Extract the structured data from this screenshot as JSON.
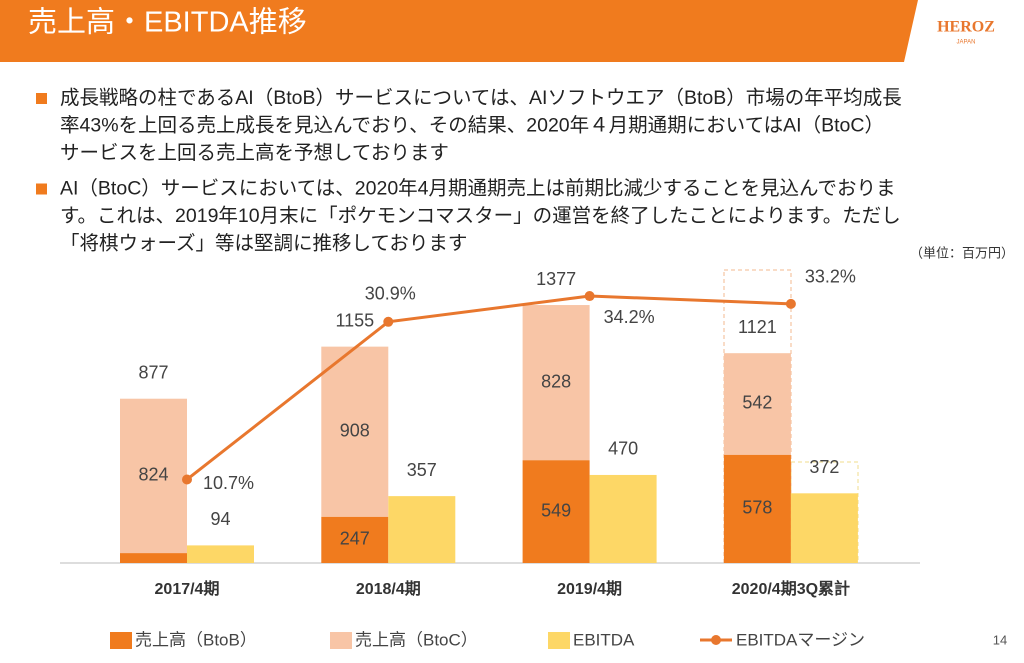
{
  "header": {
    "title": "売上高・EBITDA推移",
    "logo": "HEROZ",
    "logo_sub": "JAPAN"
  },
  "bullets": [
    [
      "成長戦略の柱であるAI（BtoB）サービスについては、AIソフトウエア（BtoB）市場の年平均成長",
      "率43%を上回る売上成長を見込んでおり、その結果、2020年４月期通期においてはAI（BtoC）",
      "サービスを上回る売上高を予想しております"
    ],
    [
      "AI（BtoC）サービスにおいては、2020年4月期通期売上は前期比減少することを見込んでおりま",
      "す。これは、2019年10月末に「ポケモンコマスター」の運営を終了したことによります。ただし",
      "「将棋ウォーズ」等は堅調に推移しております"
    ]
  ],
  "unit": "（単位：百万円）",
  "page_number": "14",
  "chart_data": {
    "type": "bar",
    "categories": [
      "2017/4期",
      "2018/4期",
      "2019/4期",
      "2020/4期3Q累計"
    ],
    "series": [
      {
        "name": "売上高（BtoB）",
        "color": "#f07b1e",
        "stack": "revenue",
        "values": [
          53,
          247,
          549,
          578
        ]
      },
      {
        "name": "売上高（BtoC）",
        "color": "#f8c5a6",
        "stack": "revenue",
        "values": [
          824,
          908,
          828,
          542
        ]
      },
      {
        "name": "EBITDA",
        "color": "#fdd766",
        "values": [
          94,
          357,
          470,
          372
        ]
      },
      {
        "name": "EBITDAマージン",
        "color": "#e8772e",
        "type": "line",
        "axis": "y2",
        "values": [
          10.7,
          30.9,
          34.2,
          33.2
        ],
        "value_labels": [
          "10.7%",
          "30.9%",
          "34.2%",
          "33.2%"
        ]
      }
    ],
    "totals": [
      877,
      1155,
      1377,
      1121
    ],
    "ylim": [
      0,
      1500
    ],
    "y2lim": [
      0,
      36
    ]
  }
}
